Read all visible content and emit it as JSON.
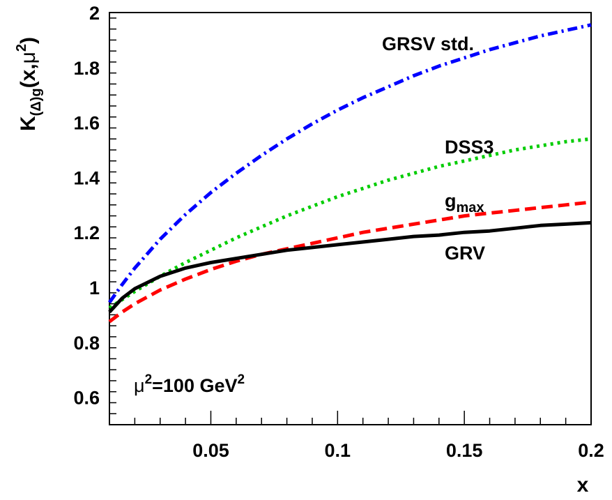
{
  "chart_data": {
    "type": "line",
    "xlabel": "x",
    "ylabel": {
      "main": "K",
      "subscript": "(Δ)g",
      "args_open": "(x,",
      "mu": "μ",
      "sup": "2",
      "args_close": ")"
    },
    "xlim": [
      0.01,
      0.2
    ],
    "ylim": [
      0.5,
      2.0
    ],
    "x_ticks": [
      {
        "value": 0.05,
        "label": "0.05"
      },
      {
        "value": 0.1,
        "label": "0.1"
      },
      {
        "value": 0.15,
        "label": "0.15"
      },
      {
        "value": 0.2,
        "label": "0.2"
      }
    ],
    "y_ticks": [
      {
        "value": 0.6,
        "label": "0.6"
      },
      {
        "value": 0.8,
        "label": "0.8"
      },
      {
        "value": 1.0,
        "label": "1"
      },
      {
        "value": 1.2,
        "label": "1.2"
      },
      {
        "value": 1.4,
        "label": "1.4"
      },
      {
        "value": 1.6,
        "label": "1.6"
      },
      {
        "value": 1.8,
        "label": "1.8"
      },
      {
        "value": 2.0,
        "label": "2"
      }
    ],
    "annotation": {
      "mu": "μ",
      "sup1": "2",
      "text": "=100 GeV",
      "sup2": "2"
    },
    "series": [
      {
        "name": "GRSV std.",
        "color": "#0000ff",
        "style": "dashdot",
        "x": [
          0.01,
          0.015,
          0.02,
          0.03,
          0.04,
          0.05,
          0.06,
          0.07,
          0.08,
          0.09,
          0.1,
          0.11,
          0.12,
          0.13,
          0.14,
          0.15,
          0.16,
          0.17,
          0.18,
          0.19,
          0.2
        ],
        "y": [
          0.945,
          1.01,
          1.07,
          1.175,
          1.265,
          1.345,
          1.415,
          1.48,
          1.54,
          1.595,
          1.645,
          1.69,
          1.73,
          1.77,
          1.805,
          1.835,
          1.865,
          1.89,
          1.915,
          1.935,
          1.955
        ]
      },
      {
        "name": "DSS3",
        "color": "#00cc00",
        "style": "dotted",
        "x": [
          0.01,
          0.015,
          0.02,
          0.03,
          0.04,
          0.05,
          0.06,
          0.07,
          0.08,
          0.09,
          0.1,
          0.11,
          0.12,
          0.13,
          0.14,
          0.15,
          0.16,
          0.17,
          0.18,
          0.19,
          0.2
        ],
        "y": [
          0.925,
          0.955,
          0.985,
          1.04,
          1.09,
          1.135,
          1.18,
          1.22,
          1.26,
          1.295,
          1.33,
          1.36,
          1.39,
          1.415,
          1.44,
          1.46,
          1.48,
          1.5,
          1.515,
          1.53,
          1.54
        ]
      },
      {
        "name": "g",
        "name_sub": "max",
        "color": "#ff0000",
        "style": "dashed",
        "x": [
          0.01,
          0.015,
          0.02,
          0.03,
          0.04,
          0.05,
          0.06,
          0.07,
          0.08,
          0.09,
          0.1,
          0.11,
          0.12,
          0.13,
          0.14,
          0.15,
          0.16,
          0.17,
          0.18,
          0.19,
          0.2
        ],
        "y": [
          0.875,
          0.91,
          0.94,
          0.99,
          1.03,
          1.065,
          1.095,
          1.12,
          1.14,
          1.16,
          1.18,
          1.2,
          1.215,
          1.23,
          1.245,
          1.26,
          1.27,
          1.28,
          1.29,
          1.3,
          1.31
        ]
      },
      {
        "name": "GRV",
        "color": "#000000",
        "style": "solid",
        "x": [
          0.01,
          0.015,
          0.02,
          0.03,
          0.04,
          0.05,
          0.06,
          0.07,
          0.08,
          0.09,
          0.1,
          0.11,
          0.12,
          0.13,
          0.14,
          0.15,
          0.16,
          0.17,
          0.18,
          0.19,
          0.2
        ],
        "y": [
          0.91,
          0.96,
          0.995,
          1.04,
          1.07,
          1.09,
          1.105,
          1.12,
          1.135,
          1.145,
          1.155,
          1.165,
          1.175,
          1.185,
          1.19,
          1.2,
          1.205,
          1.215,
          1.225,
          1.23,
          1.235
        ]
      }
    ]
  }
}
